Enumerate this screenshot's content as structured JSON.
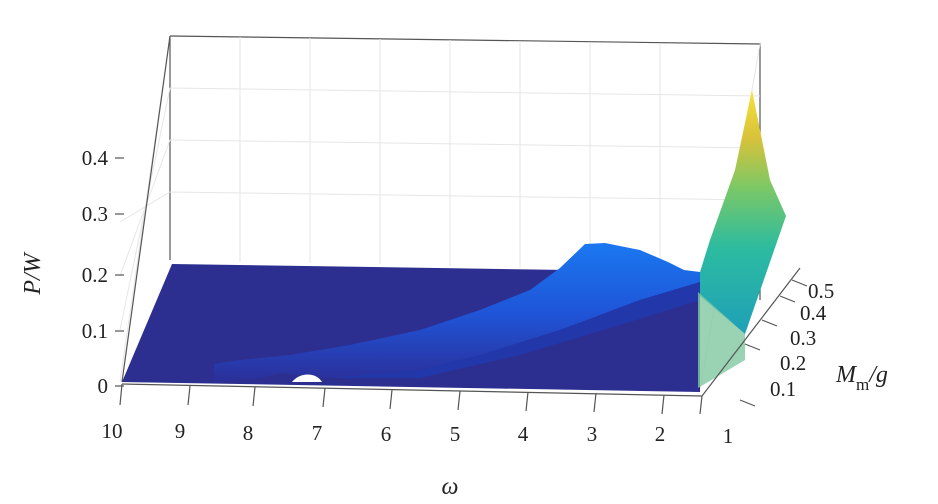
{
  "chart_data": {
    "type": "surface",
    "xlabel": "ω",
    "ylabel_parts": {
      "base": "M",
      "sub": "m",
      "rest": "/g"
    },
    "zlabel": "P/W",
    "x_ticks": [
      "10",
      "9",
      "8",
      "7",
      "6",
      "5",
      "4",
      "3",
      "2",
      "1"
    ],
    "y_ticks": [
      "0.1",
      "0.2",
      "0.3",
      "0.4",
      "0.5"
    ],
    "z_ticks": [
      "0",
      "0.1",
      "0.2",
      "0.3",
      "0.4"
    ],
    "xlim": [
      1,
      10
    ],
    "ylim": [
      0,
      0.55
    ],
    "zlim": [
      0,
      0.45
    ],
    "grid": true,
    "colormap": "parula",
    "ridge": {
      "description_values": [
        {
          "omega": 8.5,
          "peak_P": 0.02
        },
        {
          "omega": 7.0,
          "peak_P": 0.03
        },
        {
          "omega": 6.0,
          "peak_P": 0.05
        },
        {
          "omega": 5.0,
          "peak_P": 0.08
        },
        {
          "omega": 4.0,
          "peak_P": 0.12
        },
        {
          "omega": 3.2,
          "peak_P": 0.19
        },
        {
          "omega": 2.5,
          "peak_P": 0.18
        }
      ]
    },
    "edge_omega1": {
      "Mm_over_g": [
        0.0,
        0.1,
        0.2,
        0.3,
        0.4,
        0.5
      ],
      "P": [
        0.2,
        0.22,
        0.25,
        0.3,
        0.36,
        0.47
      ]
    }
  }
}
